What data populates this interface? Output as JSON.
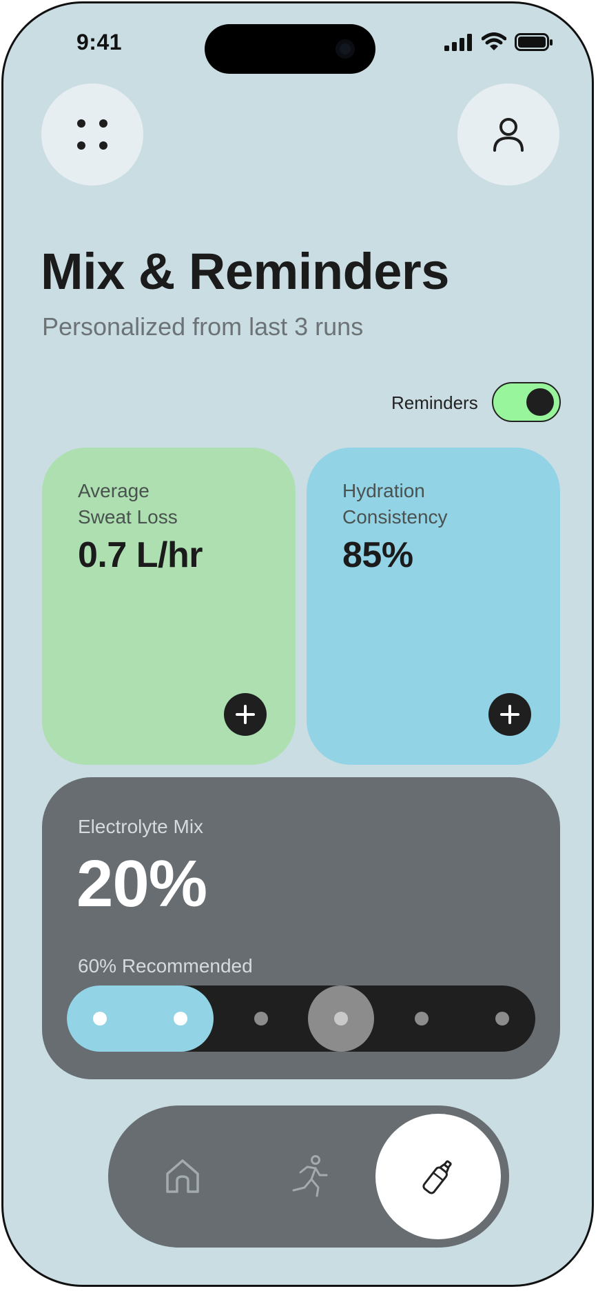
{
  "status_bar": {
    "time": "9:41"
  },
  "header": {
    "menu_icon": "grid-dots-icon",
    "profile_icon": "user-icon"
  },
  "page": {
    "title": "Mix & Reminders",
    "subtitle": "Personalized from last 3 runs"
  },
  "reminders": {
    "label": "Reminders",
    "enabled": true,
    "toggle_color": "#98f59b"
  },
  "cards": [
    {
      "label": "Average\nSweat Loss",
      "value": "0.7 L/hr",
      "color": "#addfb0",
      "action_icon": "plus-icon"
    },
    {
      "label": "Hydration\nConsistency",
      "value": "85%",
      "color": "#93d3e6",
      "action_icon": "plus-icon"
    }
  ],
  "electrolyte": {
    "label": "Electrolyte Mix",
    "value": "20%",
    "recommended": "60% Recommended",
    "slider": {
      "steps": 6,
      "selected_fraction": 0.2,
      "recommended_fraction": 0.6,
      "fill_color": "#93d3e6"
    }
  },
  "nav": {
    "items": [
      {
        "icon": "home-icon",
        "active": false
      },
      {
        "icon": "runner-icon",
        "active": false
      },
      {
        "icon": "bottle-icon",
        "active": true
      }
    ]
  },
  "colors": {
    "background": "#cadde3",
    "dark_card": "#676d71",
    "toggle_on": "#98f59b"
  }
}
